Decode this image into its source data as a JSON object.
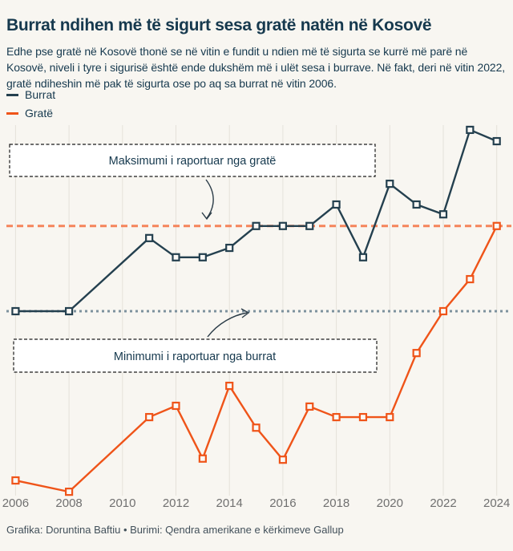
{
  "header": {
    "title": "Burrat ndihen më të sigurt sesa gratë natën në Kosovë",
    "subtitle": "Edhe pse gratë në Kosovë thonë se në vitin e fundit u ndien më të sigurta se kurrë më parë në Kosovë, niveli i tyre i sigurisë është ende dukshëm më i ulët sesa i burrave. Në fakt, deri në vitin 2022, gratë ndiheshin më pak të sigurta ose po aq sa burrat në vitin 2006."
  },
  "legend": {
    "items": [
      {
        "label": "Burrat",
        "color": "#24404f"
      },
      {
        "label": "Gratë",
        "color": "#ef5419"
      }
    ]
  },
  "annotations": {
    "max_label": "Maksimumi i raportuar nga gratë",
    "min_label": "Minimumi i raportuar nga burrat"
  },
  "footer": {
    "credit": "Grafika: Doruntina Baftiu • Burimi: Qendra amerikane e kërkimeve Gallup"
  },
  "colors": {
    "background": "#f8f6f1",
    "text": "#16394e",
    "men_line": "#24404f",
    "women_line": "#ef5419",
    "women_max_dashed": "#f5845b",
    "men_min_dotted": "#7e929e",
    "gridline": "#e5e1da",
    "tick_label": "#707070",
    "annotation_border": "#1a1a1a",
    "annotation_bg": "#ffffff",
    "footer_text": "#42505a",
    "marker_fill": "#fbf9f6"
  },
  "chart_data": {
    "type": "line",
    "title": "Burrat ndihen më të sigurt sesa gratë natën në Kosovë",
    "xlabel": "",
    "ylabel": "",
    "y_axis_note": "no y-axis tick labels are shown in the figure; series values are relative levels on a 0-100 scale estimated from pixel positions",
    "x": [
      2006,
      2008,
      2011,
      2012,
      2013,
      2014,
      2015,
      2016,
      2017,
      2018,
      2019,
      2020,
      2021,
      2022,
      2023,
      2024
    ],
    "x_ticks": [
      2006,
      2008,
      2010,
      2012,
      2014,
      2016,
      2018,
      2020,
      2022,
      2024
    ],
    "ylim": [
      0,
      100
    ],
    "grid": "vertical-only",
    "legend_position": "top-left",
    "series": [
      {
        "name": "Burrat",
        "color": "#24404f",
        "marker": "open-square",
        "values": [
          50.0,
          50.0,
          69.4,
          64.3,
          64.3,
          66.8,
          72.6,
          72.6,
          72.6,
          78.3,
          64.3,
          83.8,
          78.3,
          75.7,
          98.1,
          95.1
        ]
      },
      {
        "name": "Gratë",
        "color": "#ef5419",
        "marker": "open-square",
        "values": [
          5.1,
          2.1,
          21.9,
          24.9,
          10.9,
          30.2,
          19.1,
          10.6,
          24.7,
          21.9,
          21.9,
          21.9,
          38.9,
          50.0,
          58.5,
          72.6
        ]
      }
    ],
    "reference_lines": [
      {
        "label": "Maksimumi i raportuar nga gratë",
        "value": 72.6,
        "style": "dashed",
        "color": "#f5845b"
      },
      {
        "label": "Minimumi i raportuar nga burrat",
        "value": 50.0,
        "style": "dotted",
        "color": "#7e929e"
      }
    ]
  }
}
